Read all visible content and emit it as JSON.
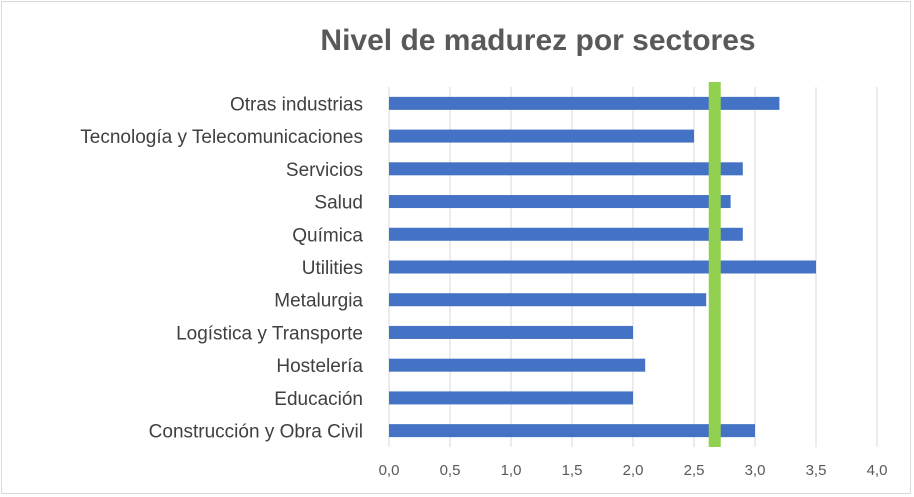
{
  "chart_data": {
    "type": "bar",
    "orientation": "horizontal",
    "title": "Nivel de madurez por sectores",
    "xlabel": "",
    "ylabel": "",
    "categories": [
      "Construcción y Obra Civil",
      "Educación",
      "Hostelería",
      "Logística y Transporte",
      "Metalurgia",
      "Utilities",
      "Química",
      "Salud",
      "Servicios",
      "Tecnología y Telecomunicaciones",
      "Otras industrias"
    ],
    "values": [
      3.0,
      2.0,
      2.1,
      2.0,
      2.6,
      3.5,
      2.9,
      2.8,
      2.9,
      2.5,
      3.2
    ],
    "xlim": [
      0,
      4
    ],
    "xticks": [
      "0,0",
      "0,5",
      "1,0",
      "1,5",
      "2,0",
      "2,5",
      "3,0",
      "3,5",
      "4,0"
    ],
    "reference_line": {
      "value": 2.67,
      "color": "#92d050"
    },
    "bar_color": "#4472c4",
    "grid": true,
    "legend": "none"
  }
}
